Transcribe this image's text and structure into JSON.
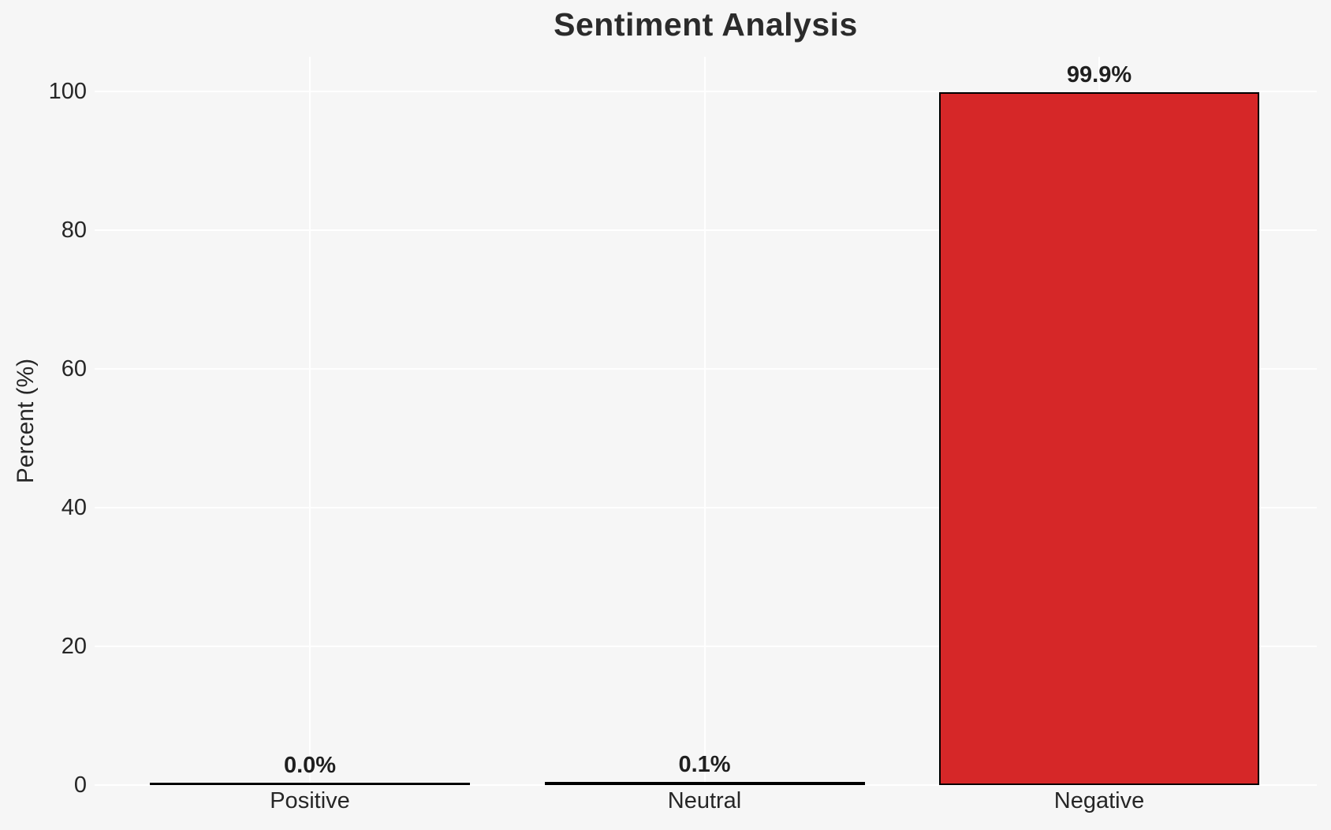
{
  "chart_data": {
    "type": "bar",
    "title": "Sentiment Analysis",
    "xlabel": "",
    "ylabel": "Percent (%)",
    "categories": [
      "Positive",
      "Neutral",
      "Negative"
    ],
    "values": [
      0.0,
      0.1,
      99.9
    ],
    "bar_labels": [
      "0.0%",
      "0.1%",
      "99.9%"
    ],
    "yticks": [
      0,
      20,
      40,
      60,
      80,
      100
    ],
    "ylim": [
      0,
      105
    ],
    "grid": true,
    "legend": "none",
    "colors": {
      "bar_fill": "#d62728",
      "bar_edge": "#000000",
      "background": "#f6f6f6",
      "gridline": "#ffffff",
      "text": "#262626",
      "title_text": "#2b2b2b"
    }
  }
}
